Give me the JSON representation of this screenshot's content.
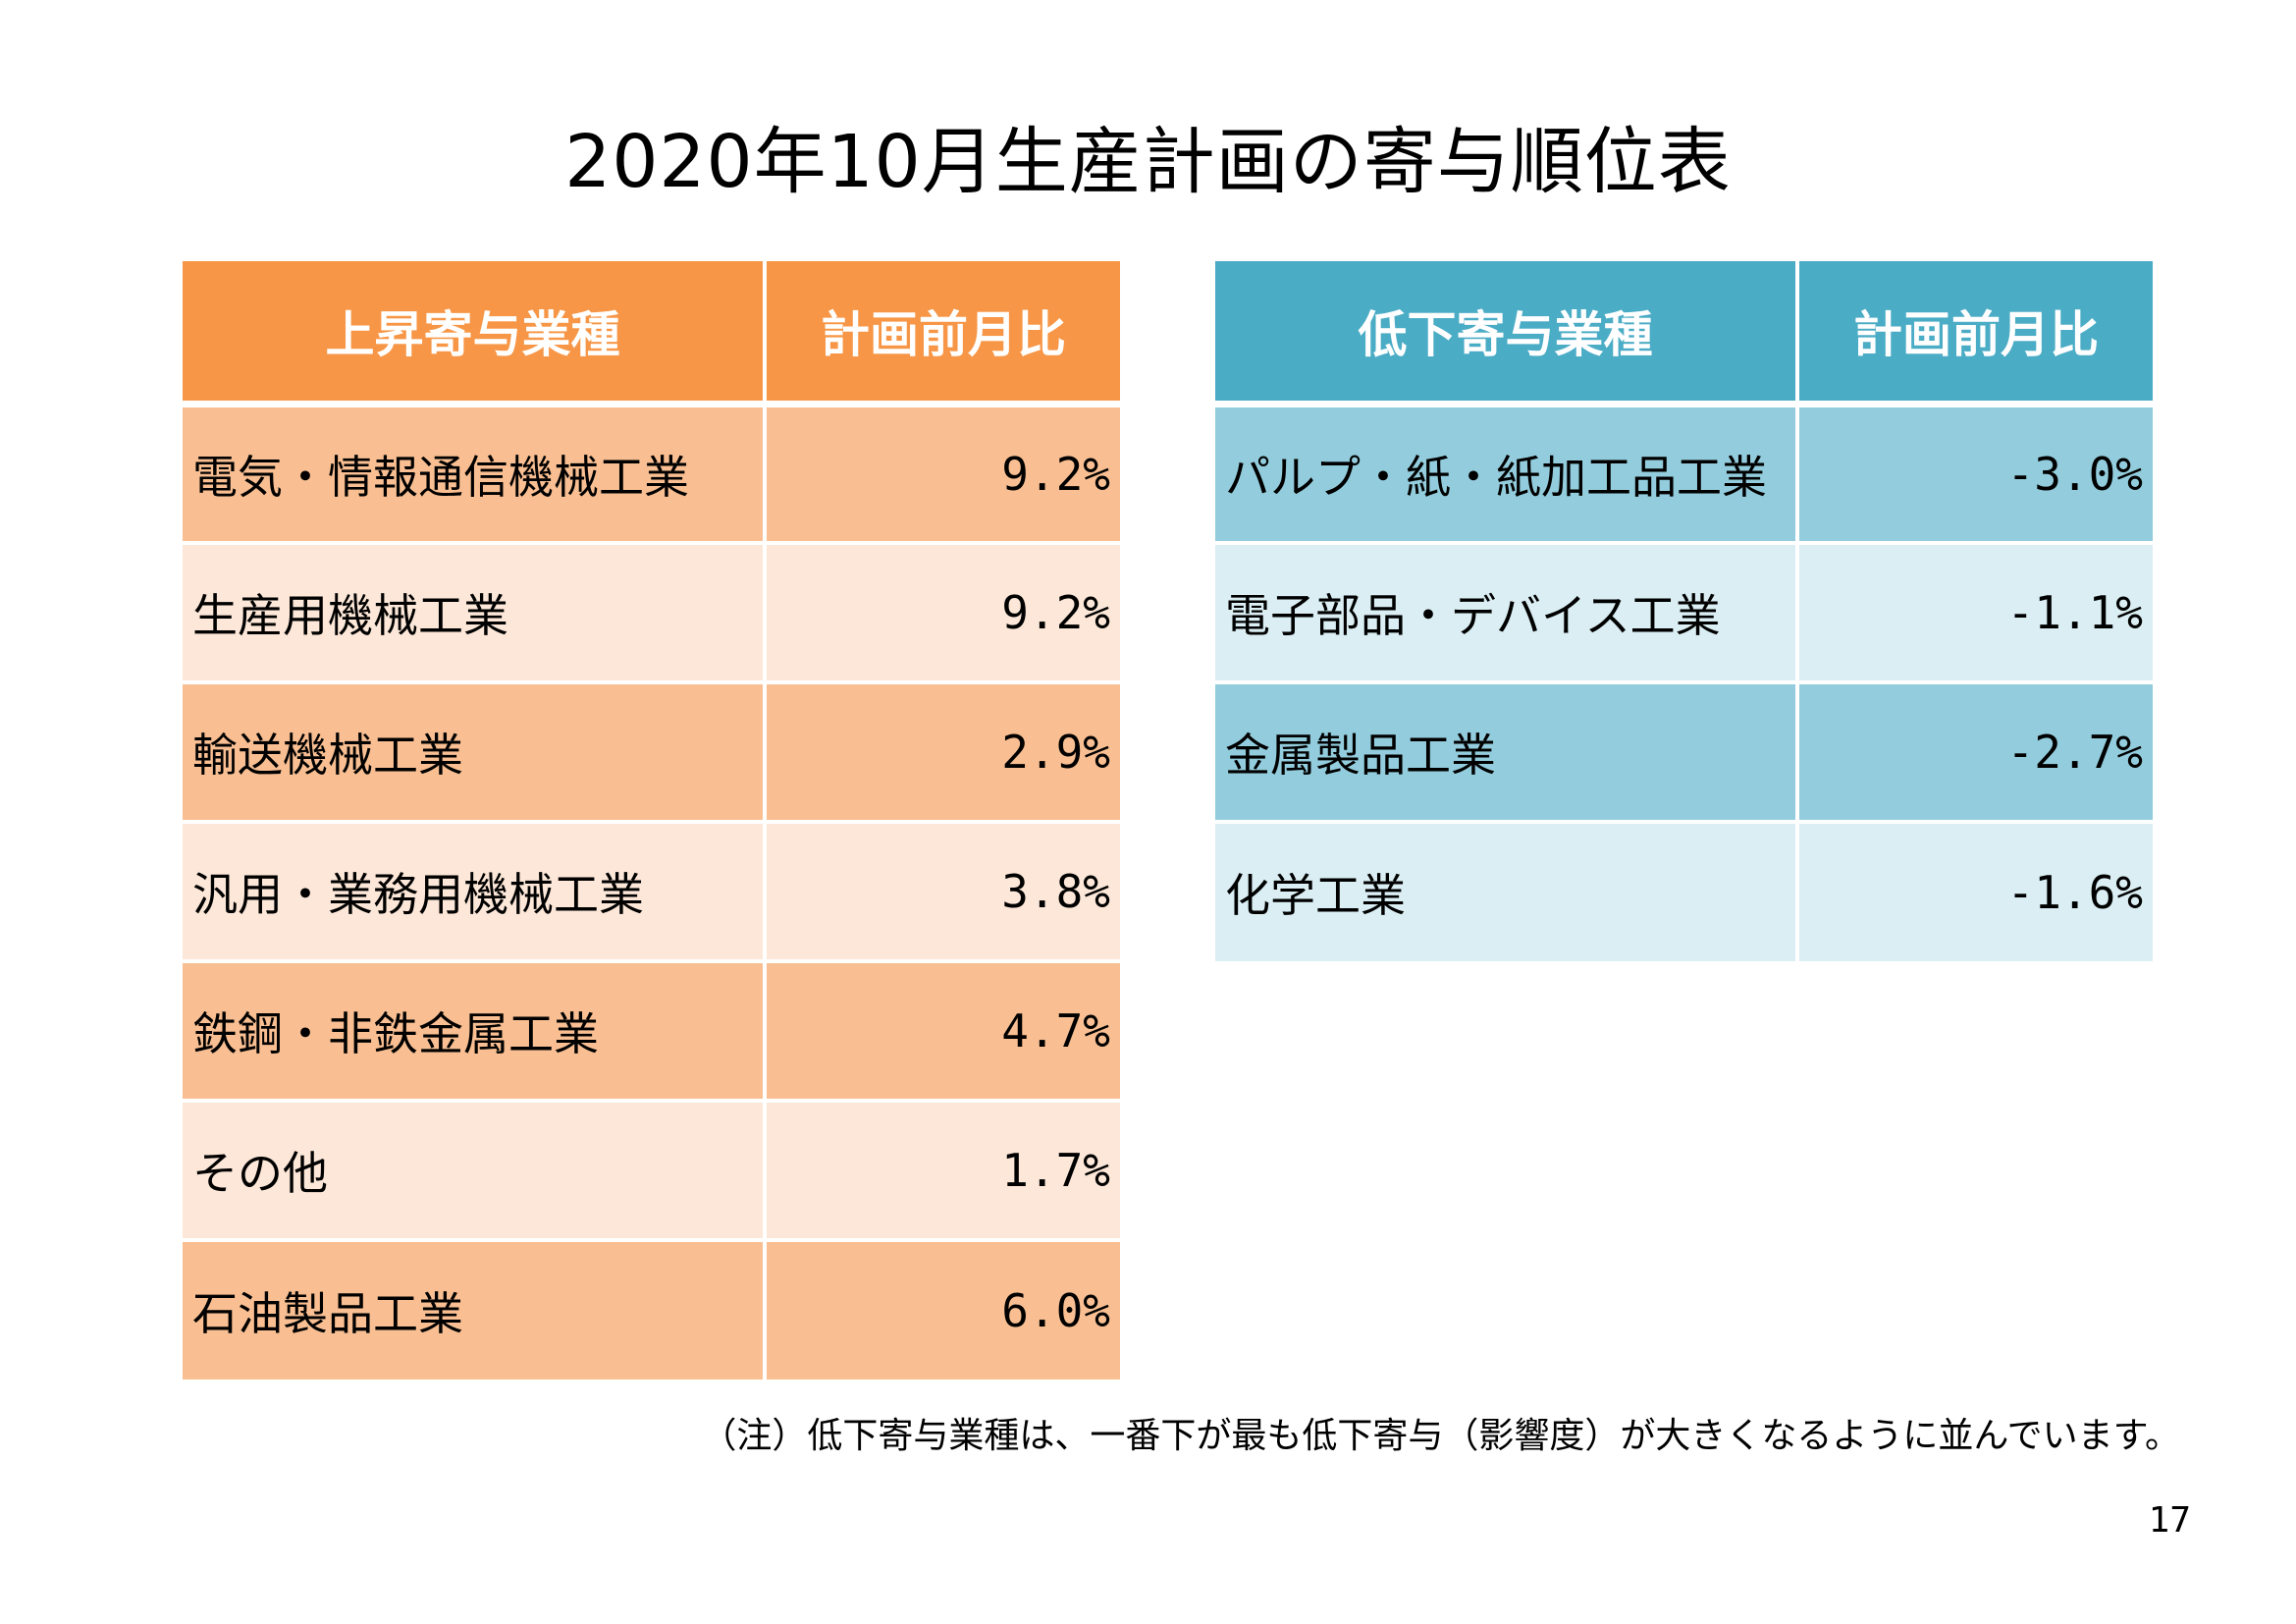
{
  "title": "2020年10月生産計画の寄与順位表",
  "colors": {
    "rise_header": "#f79646",
    "rise_row_dark": "#f9bf92",
    "rise_row_light": "#fce7d8",
    "fall_header": "#4bacc6",
    "fall_row_dark": "#93cddd",
    "fall_row_light": "#daeef3"
  },
  "rise_table": {
    "header_industry": "上昇寄与業種",
    "header_value": "計画前月比",
    "rows": [
      {
        "industry": "電気・情報通信機械工業",
        "value": "9.2%"
      },
      {
        "industry": "生産用機械工業",
        "value": "9.2%"
      },
      {
        "industry": "輸送機械工業",
        "value": "2.9%"
      },
      {
        "industry": "汎用・業務用機械工業",
        "value": "3.8%"
      },
      {
        "industry": "鉄鋼・非鉄金属工業",
        "value": "4.7%"
      },
      {
        "industry": "その他",
        "value": "1.7%"
      },
      {
        "industry": "石油製品工業",
        "value": "6.0%"
      }
    ]
  },
  "fall_table": {
    "header_industry": "低下寄与業種",
    "header_value": "計画前月比",
    "rows": [
      {
        "industry": "パルプ・紙・紙加工品工業",
        "value": "-3.0%"
      },
      {
        "industry": "電子部品・デバイス工業",
        "value": "-1.1%"
      },
      {
        "industry": "金属製品工業",
        "value": "-2.7%"
      },
      {
        "industry": "化学工業",
        "value": "-1.6%"
      }
    ]
  },
  "note": "（注）低下寄与業種は、一番下が最も低下寄与（影響度）が大きくなるように並んでいます。",
  "page_number": "17"
}
